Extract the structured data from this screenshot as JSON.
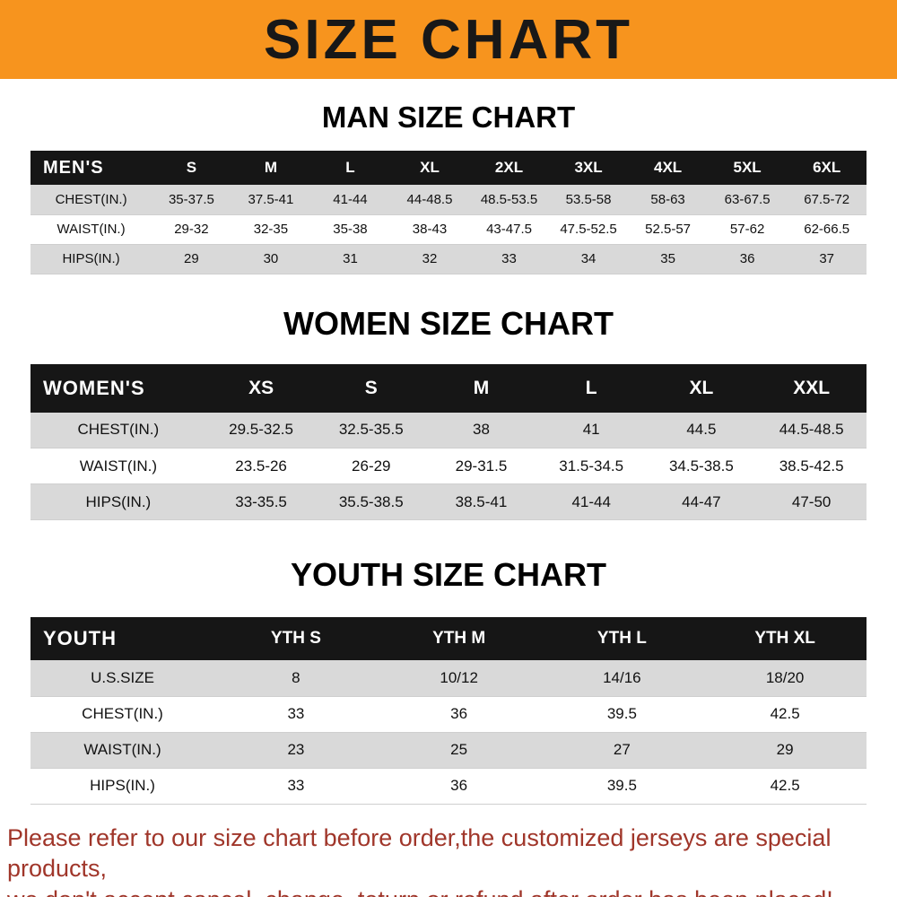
{
  "banner": {
    "title": "SIZE CHART"
  },
  "colors": {
    "banner_bg": "#f7941e",
    "header_bg": "#161616",
    "stripe": "#d9d9d9",
    "disclaimer": "#a0362a"
  },
  "chart_data": [
    {
      "type": "table",
      "id": "men",
      "title": "MAN SIZE CHART",
      "header": [
        "MEN'S",
        "S",
        "M",
        "L",
        "XL",
        "2XL",
        "3XL",
        "4XL",
        "5XL",
        "6XL"
      ],
      "rows": [
        [
          "CHEST(IN.)",
          "35-37.5",
          "37.5-41",
          "41-44",
          "44-48.5",
          "48.5-53.5",
          "53.5-58",
          "58-63",
          "63-67.5",
          "67.5-72"
        ],
        [
          "WAIST(IN.)",
          "29-32",
          "32-35",
          "35-38",
          "38-43",
          "43-47.5",
          "47.5-52.5",
          "52.5-57",
          "57-62",
          "62-66.5"
        ],
        [
          "HIPS(IN.)",
          "29",
          "30",
          "31",
          "32",
          "33",
          "34",
          "35",
          "36",
          "37"
        ]
      ]
    },
    {
      "type": "table",
      "id": "women",
      "title": "WOMEN SIZE CHART",
      "header": [
        "WOMEN'S",
        "XS",
        "S",
        "M",
        "L",
        "XL",
        "XXL"
      ],
      "rows": [
        [
          "CHEST(IN.)",
          "29.5-32.5",
          "32.5-35.5",
          "38",
          "41",
          "44.5",
          "44.5-48.5"
        ],
        [
          "WAIST(IN.)",
          "23.5-26",
          "26-29",
          "29-31.5",
          "31.5-34.5",
          "34.5-38.5",
          "38.5-42.5"
        ],
        [
          "HIPS(IN.)",
          "33-35.5",
          "35.5-38.5",
          "38.5-41",
          "41-44",
          "44-47",
          "47-50"
        ]
      ]
    },
    {
      "type": "table",
      "id": "youth",
      "title": "YOUTH SIZE CHART",
      "header": [
        "YOUTH",
        "YTH S",
        "YTH M",
        "YTH L",
        "YTH XL"
      ],
      "rows": [
        [
          "U.S.SIZE",
          "8",
          "10/12",
          "14/16",
          "18/20"
        ],
        [
          "CHEST(IN.)",
          "33",
          "36",
          "39.5",
          "42.5"
        ],
        [
          "WAIST(IN.)",
          "23",
          "25",
          "27",
          "29"
        ],
        [
          "HIPS(IN.)",
          "33",
          "36",
          "39.5",
          "42.5"
        ]
      ]
    }
  ],
  "disclaimer": {
    "line1": "Please refer to our size chart before order,the customized jerseys are special products,",
    "line2": "we don't accept cancel, change, teturn or refund after order has been placed!"
  }
}
